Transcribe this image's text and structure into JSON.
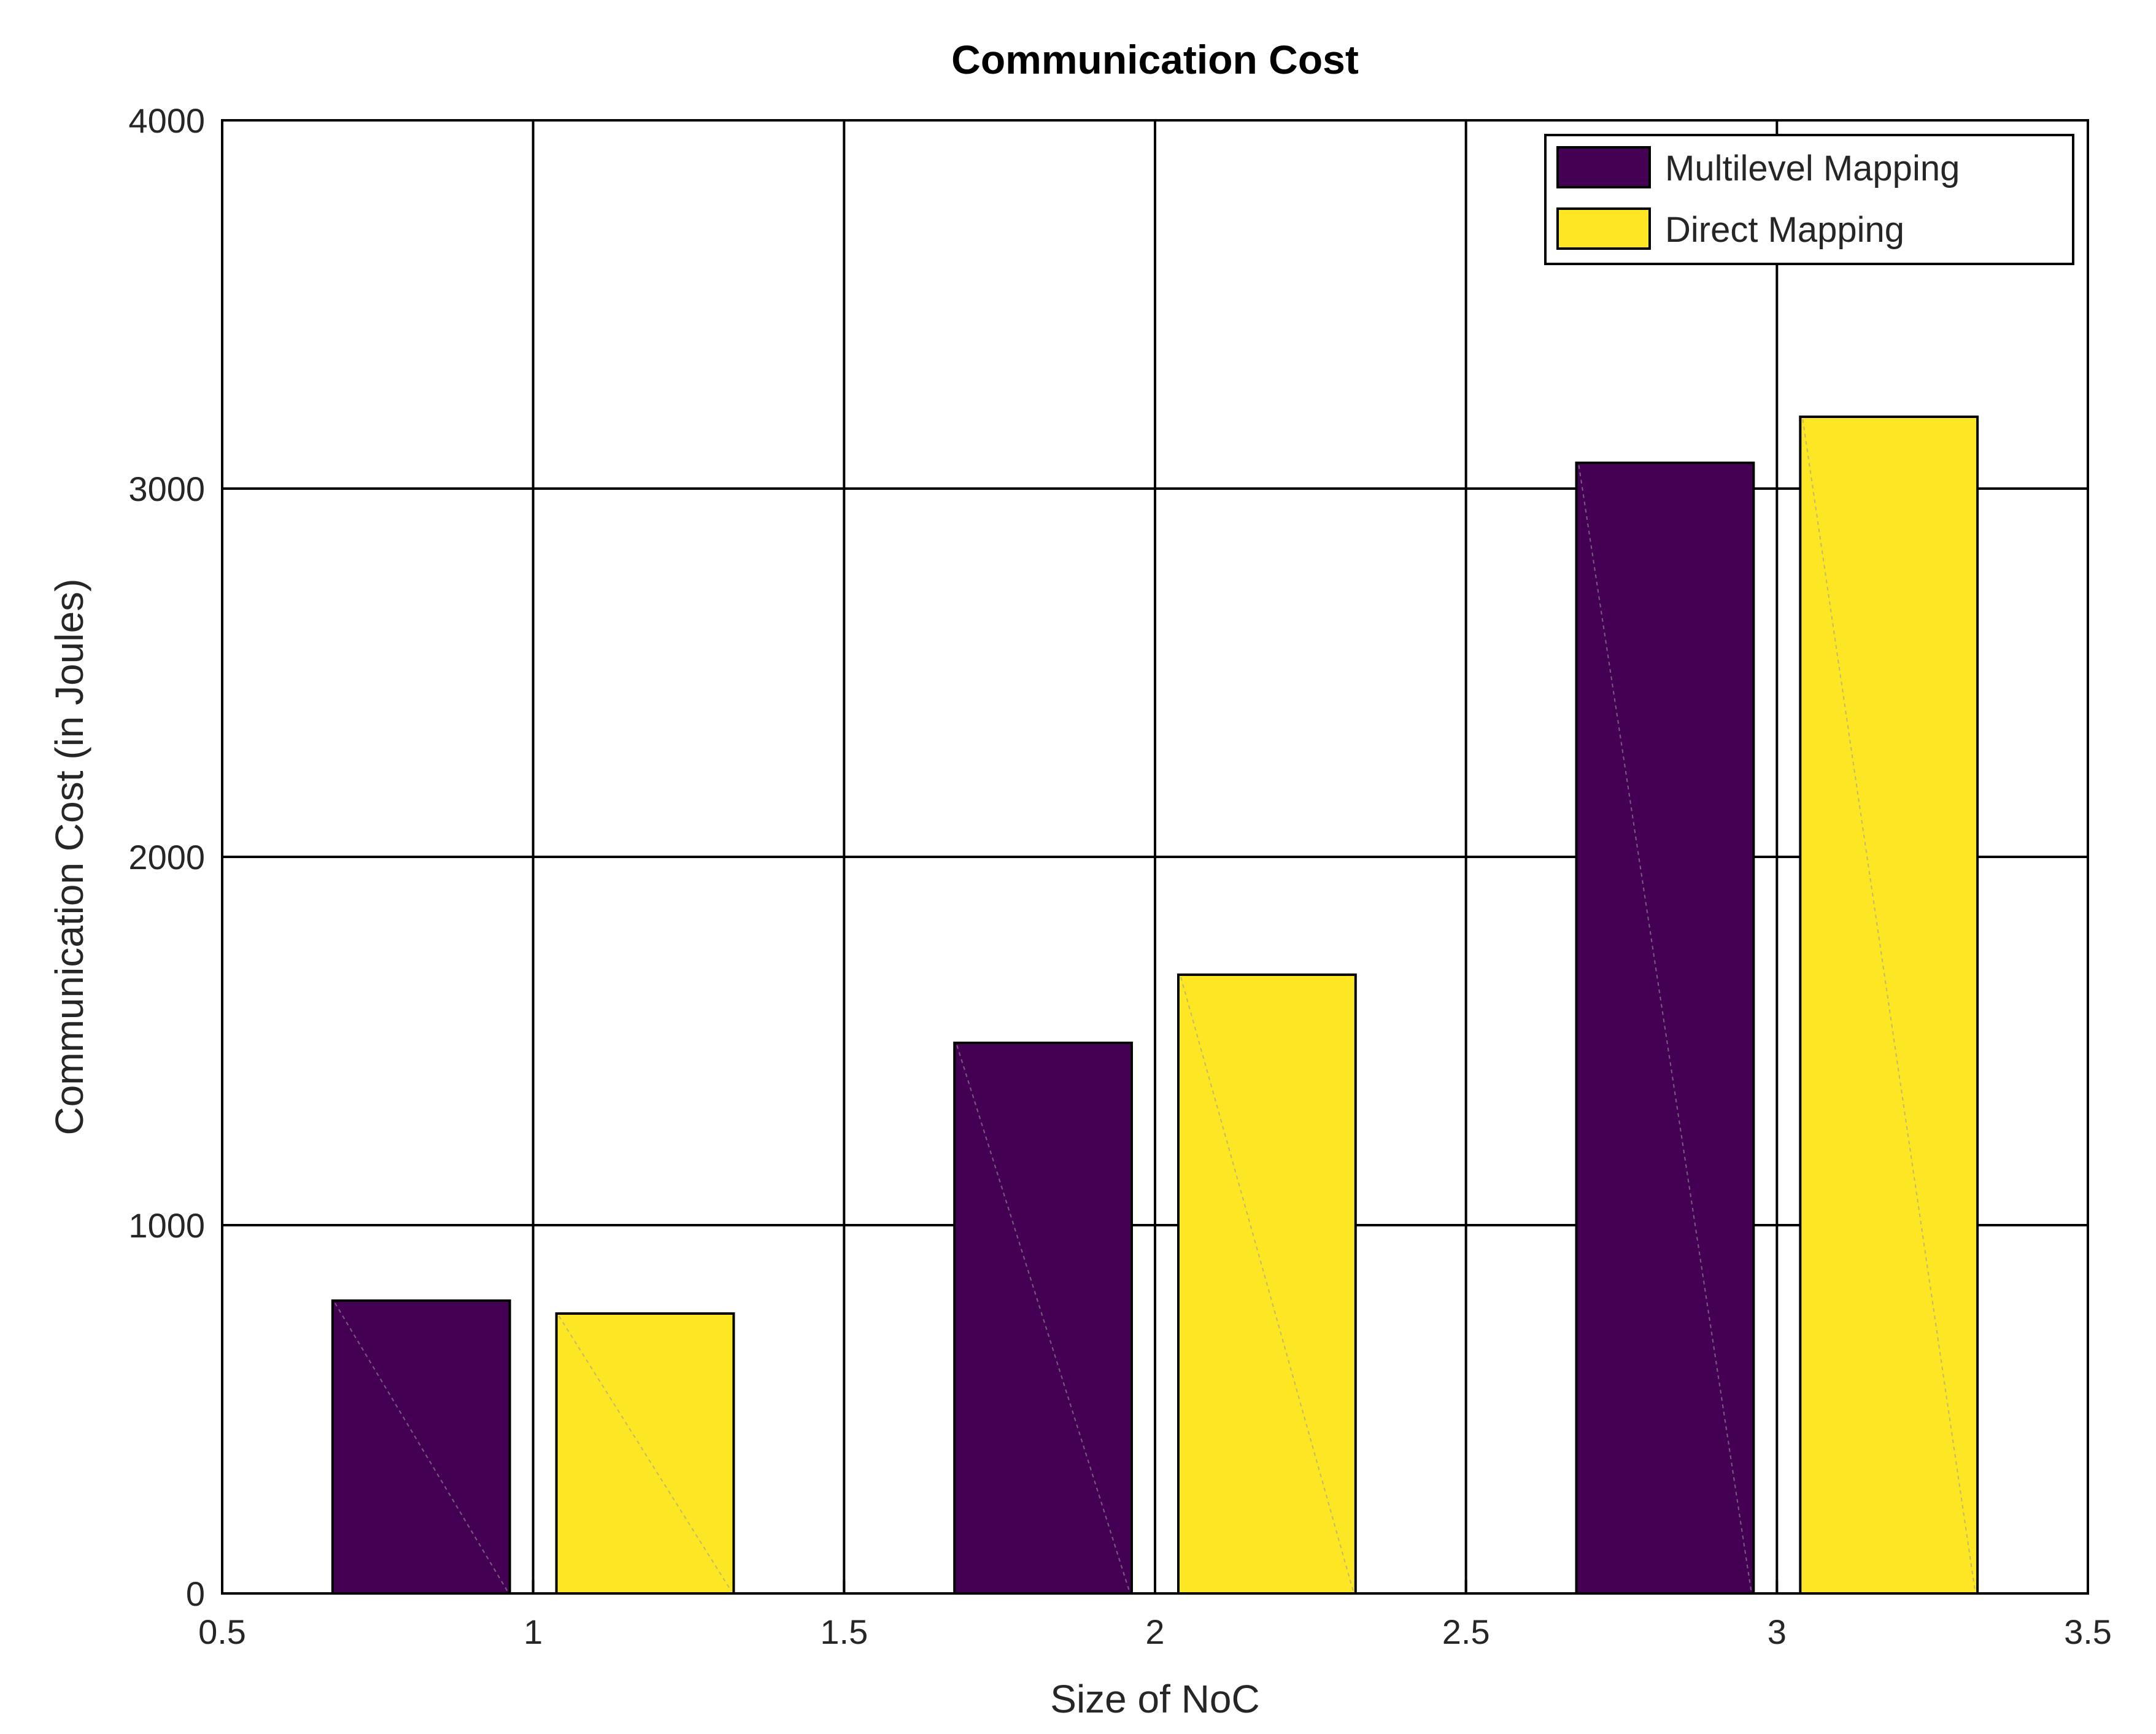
{
  "chart_data": {
    "type": "bar",
    "title": "Communication Cost",
    "xlabel": "Size of NoC",
    "ylabel": "Communication Cost (in Joules)",
    "x": [
      1,
      2,
      3
    ],
    "xlim": [
      0.5,
      3.5
    ],
    "ylim": [
      0,
      4000
    ],
    "xticks": [
      0.5,
      1,
      1.5,
      2,
      2.5,
      3,
      3.5
    ],
    "xtick_labels": [
      "0.5",
      "1",
      "1.5",
      "2",
      "2.5",
      "3",
      "3.5"
    ],
    "yticks": [
      0,
      1000,
      2000,
      3000,
      4000
    ],
    "ytick_labels": [
      "0",
      "1000",
      "2000",
      "3000",
      "4000"
    ],
    "grid": true,
    "legend_position": "top-right",
    "series": [
      {
        "name": "Multilevel Mapping",
        "values": [
          795,
          1495,
          3070
        ],
        "color": "#440154"
      },
      {
        "name": "Direct Mapping",
        "values": [
          760,
          1680,
          3195
        ],
        "color": "#FDE725"
      }
    ]
  }
}
